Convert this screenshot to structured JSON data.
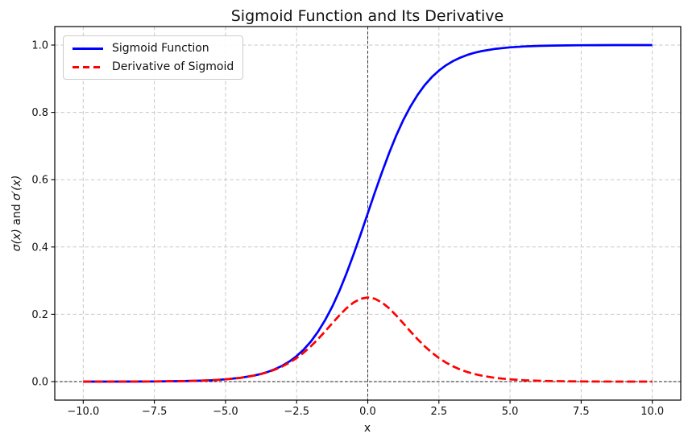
{
  "chart_data": {
    "type": "line",
    "title": "Sigmoid Function and Its Derivative",
    "xlabel": "x",
    "ylabel": "σ(x) and σ′(x)",
    "ylabel_parts": [
      "σ(x)",
      " and ",
      "σ′(x)"
    ],
    "xlim": [
      -11,
      11
    ],
    "ylim": [
      -0.055,
      1.055
    ],
    "xticks": [
      -10,
      -7.5,
      -5,
      -2.5,
      0,
      2.5,
      5,
      7.5,
      10
    ],
    "xtick_labels": [
      "−10.0",
      "−7.5",
      "−5.0",
      "−2.5",
      "0.0",
      "2.5",
      "5.0",
      "7.5",
      "10.0"
    ],
    "yticks": [
      0,
      0.2,
      0.4,
      0.6,
      0.8,
      1.0
    ],
    "ytick_labels": [
      "0.0",
      "0.2",
      "0.4",
      "0.6",
      "0.8",
      "1.0"
    ],
    "grid": true,
    "legend_position": "upper left",
    "reference_lines": {
      "axhline_y": 0,
      "axvline_x": 0
    },
    "x": [
      -10,
      -9,
      -8,
      -7.5,
      -7,
      -6.5,
      -6,
      -5.5,
      -5,
      -4.5,
      -4,
      -3.75,
      -3.5,
      -3.25,
      -3,
      -2.75,
      -2.5,
      -2.25,
      -2,
      -1.75,
      -1.5,
      -1.25,
      -1,
      -0.75,
      -0.5,
      -0.25,
      0,
      0.25,
      0.5,
      0.75,
      1,
      1.25,
      1.5,
      1.75,
      2,
      2.25,
      2.5,
      2.75,
      3,
      3.25,
      3.5,
      3.75,
      4,
      4.5,
      5,
      5.5,
      6,
      6.5,
      7,
      7.5,
      8,
      9,
      10
    ],
    "series": [
      {
        "name": "Sigmoid Function",
        "color": "#0000ff",
        "style": "solid",
        "values": [
          5e-05,
          0.00012,
          0.00034,
          0.00055,
          0.00091,
          0.0015,
          0.00247,
          0.00407,
          0.00669,
          0.01099,
          0.01799,
          0.02298,
          0.02931,
          0.03733,
          0.04743,
          0.06009,
          0.07586,
          0.09535,
          0.1192,
          0.14805,
          0.18243,
          0.2227,
          0.26894,
          0.32082,
          0.37754,
          0.43782,
          0.5,
          0.56218,
          0.62246,
          0.67918,
          0.73106,
          0.7773,
          0.81757,
          0.85195,
          0.8808,
          0.90465,
          0.92414,
          0.93991,
          0.95257,
          0.96267,
          0.97069,
          0.97702,
          0.98201,
          0.98901,
          0.99331,
          0.99593,
          0.99753,
          0.9985,
          0.99909,
          0.99945,
          0.99966,
          0.99988,
          0.99995
        ]
      },
      {
        "name": "Derivative of Sigmoid",
        "color": "#ff0000",
        "style": "dashed",
        "values": [
          5e-05,
          0.00012,
          0.00033,
          0.00055,
          0.00091,
          0.0015,
          0.00246,
          0.00405,
          0.00665,
          0.01087,
          0.01766,
          0.02245,
          0.02845,
          0.03593,
          0.04518,
          0.05648,
          0.0701,
          0.08626,
          0.10499,
          0.12613,
          0.14915,
          0.17311,
          0.19661,
          0.2179,
          0.235,
          0.24613,
          0.25,
          0.24613,
          0.235,
          0.2179,
          0.19661,
          0.17311,
          0.14915,
          0.12613,
          0.10499,
          0.08626,
          0.0701,
          0.05648,
          0.04518,
          0.03593,
          0.02845,
          0.02245,
          0.01766,
          0.01087,
          0.00665,
          0.00405,
          0.00246,
          0.0015,
          0.00091,
          0.00055,
          0.00033,
          0.00012,
          5e-05
        ]
      }
    ],
    "colors": {
      "grid": "#c9c9c9",
      "spine": "#000000",
      "refline": "#222222",
      "text": "#111111",
      "legend_border": "#cccccc"
    }
  }
}
